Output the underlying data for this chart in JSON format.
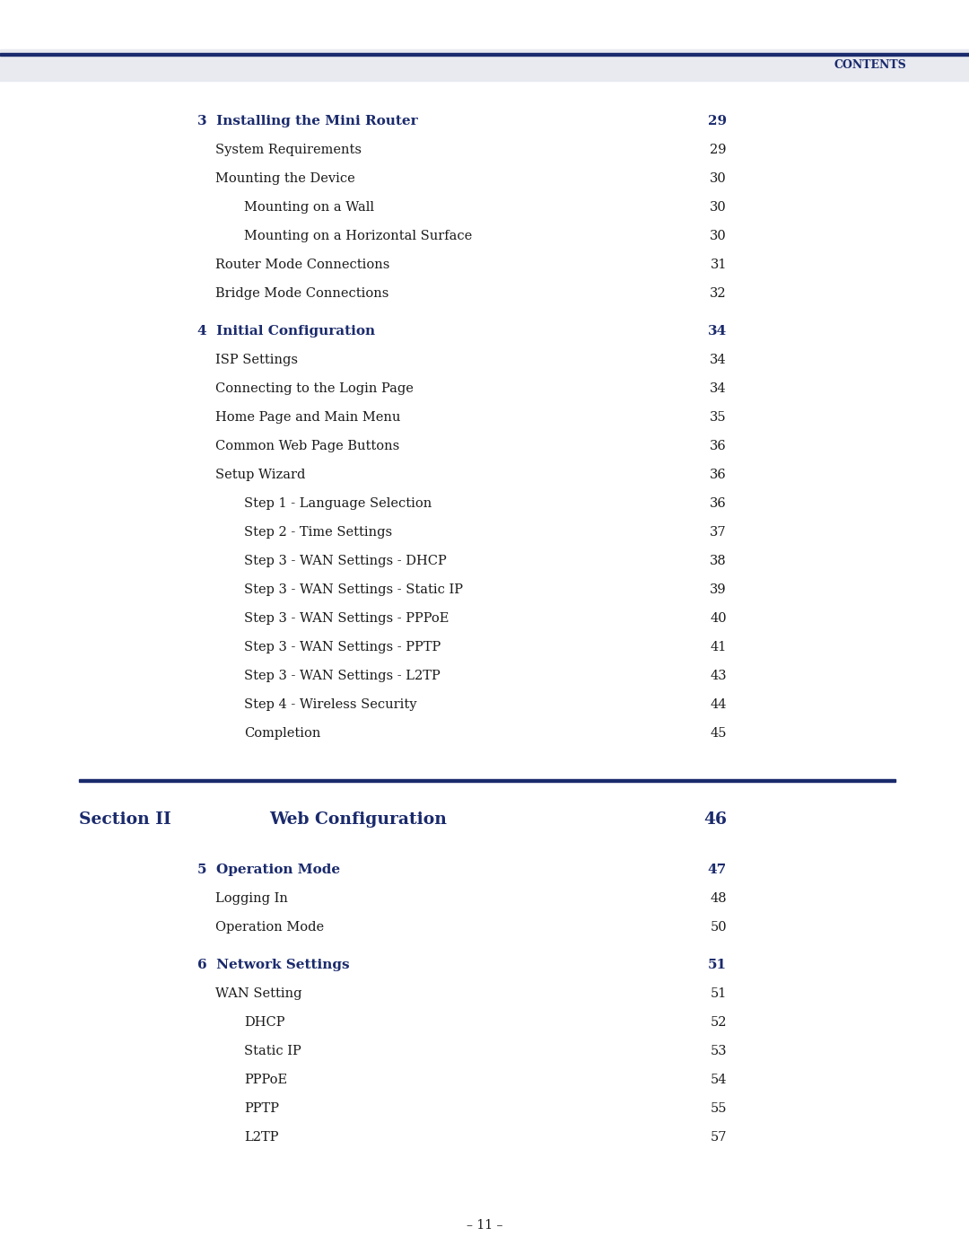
{
  "header_bg": "#e8eaf0",
  "header_text": "Contents",
  "header_text_color": "#1a2a6c",
  "dark_blue": "#1a2a6c",
  "black": "#1a1a1a",
  "page_bg": "#ffffff",
  "footer_text": "– 11 –",
  "section3_header": "3  Installing the Mini Router",
  "section3_page": "29",
  "section3_items": [
    [
      "System Requirements",
      "29",
      1
    ],
    [
      "Mounting the Device",
      "30",
      1
    ],
    [
      "Mounting on a Wall",
      "30",
      2
    ],
    [
      "Mounting on a Horizontal Surface",
      "30",
      2
    ],
    [
      "Router Mode Connections",
      "31",
      1
    ],
    [
      "Bridge Mode Connections",
      "32",
      1
    ]
  ],
  "section4_header": "4  Initial Configuration",
  "section4_page": "34",
  "section4_items": [
    [
      "ISP Settings",
      "34",
      1
    ],
    [
      "Connecting to the Login Page",
      "34",
      1
    ],
    [
      "Home Page and Main Menu",
      "35",
      1
    ],
    [
      "Common Web Page Buttons",
      "36",
      1
    ],
    [
      "Setup Wizard",
      "36",
      1
    ],
    [
      "Step 1 - Language Selection",
      "36",
      2
    ],
    [
      "Step 2 - Time Settings",
      "37",
      2
    ],
    [
      "Step 3 - WAN Settings - DHCP",
      "38",
      2
    ],
    [
      "Step 3 - WAN Settings - Static IP",
      "39",
      2
    ],
    [
      "Step 3 - WAN Settings - PPPoE",
      "40",
      2
    ],
    [
      "Step 3 - WAN Settings - PPTP",
      "41",
      2
    ],
    [
      "Step 3 - WAN Settings - L2TP",
      "43",
      2
    ],
    [
      "Step 4 - Wireless Security",
      "44",
      2
    ],
    [
      "Completion",
      "45",
      2
    ]
  ],
  "section_ii_label": "Section II",
  "section_ii_title": "Web Configuration",
  "section_ii_page": "46",
  "section5_header": "5  Operation Mode",
  "section5_page": "47",
  "section5_items": [
    [
      "Logging In",
      "48",
      1
    ],
    [
      "Operation Mode",
      "50",
      1
    ]
  ],
  "section6_header": "6  Network Settings",
  "section6_page": "51",
  "section6_items": [
    [
      "WAN Setting",
      "51",
      1
    ],
    [
      "DHCP",
      "52",
      2
    ],
    [
      "Static IP",
      "53",
      2
    ],
    [
      "PPPoE",
      "54",
      2
    ],
    [
      "PPTP",
      "55",
      2
    ],
    [
      "L2TP",
      "57",
      2
    ]
  ]
}
